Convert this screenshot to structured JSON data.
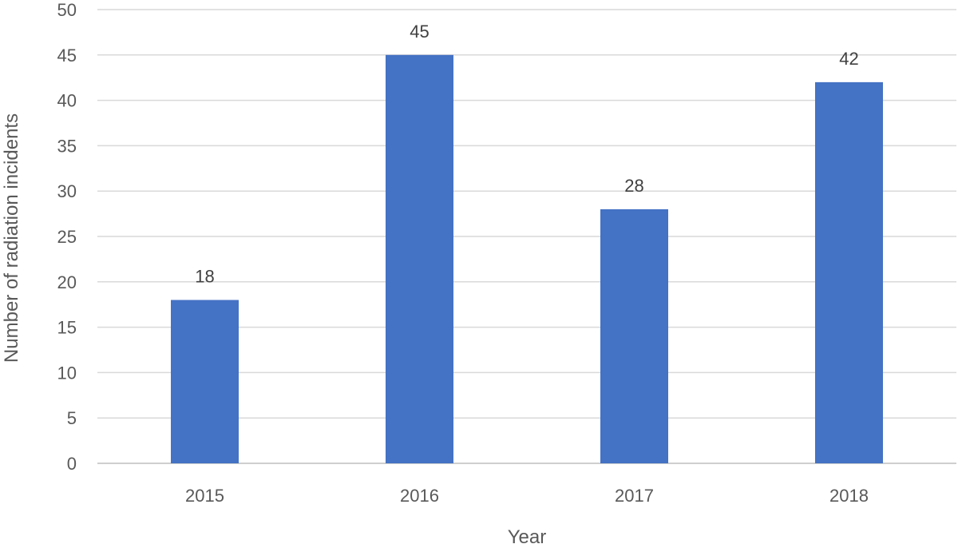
{
  "chart_data": {
    "type": "bar",
    "title": "",
    "xlabel": "Year",
    "ylabel": "Number of radiation incidents",
    "categories": [
      "2015",
      "2016",
      "2017",
      "2018"
    ],
    "values": [
      18,
      45,
      28,
      42
    ],
    "data_labels": [
      "18",
      "45",
      "28",
      "42"
    ],
    "ylim": [
      0,
      50
    ],
    "yticks": [
      0,
      5,
      10,
      15,
      20,
      25,
      30,
      35,
      40,
      45,
      50
    ],
    "grid": "horizontal",
    "legend": "none",
    "bar_color": "#4472c4"
  }
}
